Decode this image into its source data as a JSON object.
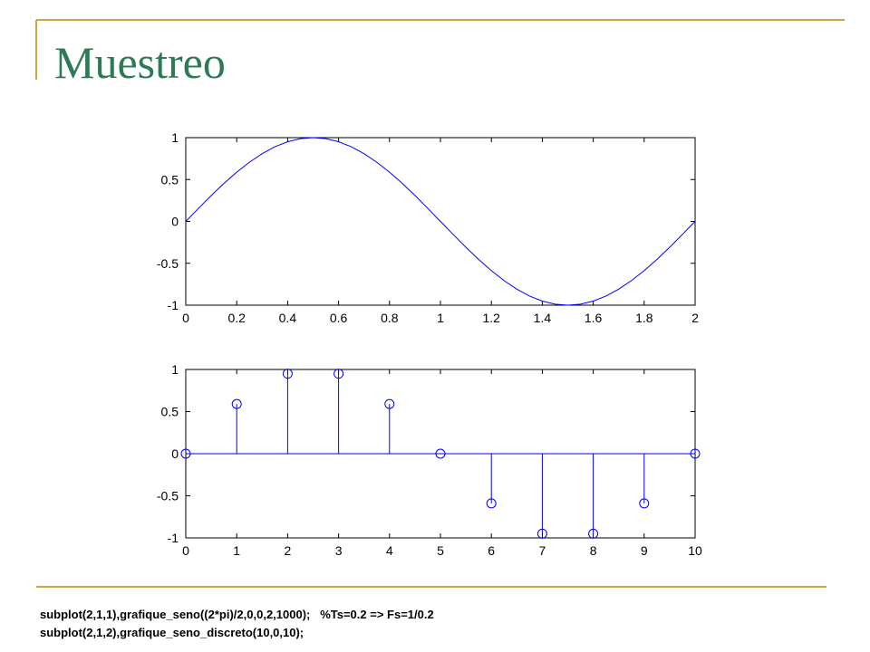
{
  "slide_title": "Muestreo",
  "code_lines": [
    "subplot(2,1,1),grafique_seno((2*pi)/2,0,0,2,1000);   %Ts=0.2 => Fs=1/0.2",
    "subplot(2,1,2),grafique_seno_discreto(10,0,10);"
  ],
  "chart_data": [
    {
      "type": "line",
      "color": "#0000ff",
      "x": [
        0,
        0.05,
        0.1,
        0.15,
        0.2,
        0.25,
        0.3,
        0.35,
        0.4,
        0.45,
        0.5,
        0.55,
        0.6,
        0.65,
        0.7,
        0.75,
        0.8,
        0.85,
        0.9,
        0.95,
        1,
        1.05,
        1.1,
        1.15,
        1.2,
        1.25,
        1.3,
        1.35,
        1.4,
        1.45,
        1.5,
        1.55,
        1.6,
        1.65,
        1.7,
        1.75,
        1.8,
        1.85,
        1.9,
        1.95,
        2
      ],
      "values": [
        0,
        0.156,
        0.309,
        0.454,
        0.588,
        0.707,
        0.809,
        0.891,
        0.951,
        0.988,
        1,
        0.988,
        0.951,
        0.891,
        0.809,
        0.707,
        0.588,
        0.454,
        0.309,
        0.156,
        0,
        -0.156,
        -0.309,
        -0.454,
        -0.588,
        -0.707,
        -0.809,
        -0.891,
        -0.951,
        -0.988,
        -1,
        -0.988,
        -0.951,
        -0.891,
        -0.809,
        -0.707,
        -0.588,
        -0.454,
        -0.309,
        -0.156,
        0
      ],
      "xlim": [
        0,
        2
      ],
      "xticks": [
        0,
        0.2,
        0.4,
        0.6,
        0.8,
        1,
        1.2,
        1.4,
        1.6,
        1.8,
        2
      ],
      "ylim": [
        -1,
        1
      ],
      "yticks": [
        -1,
        -0.5,
        0,
        0.5,
        1
      ]
    },
    {
      "type": "stem",
      "color": "#0000ff",
      "x": [
        0,
        1,
        2,
        3,
        4,
        5,
        6,
        7,
        8,
        9,
        10
      ],
      "values": [
        0,
        0.59,
        0.95,
        0.95,
        0.59,
        0,
        -0.59,
        -0.95,
        -0.95,
        -0.59,
        0
      ],
      "xlim": [
        0,
        10
      ],
      "xticks": [
        0,
        1,
        2,
        3,
        4,
        5,
        6,
        7,
        8,
        9,
        10
      ],
      "ylim": [
        -1,
        1
      ],
      "yticks": [
        -1,
        -0.5,
        0,
        0.5,
        1
      ]
    }
  ]
}
